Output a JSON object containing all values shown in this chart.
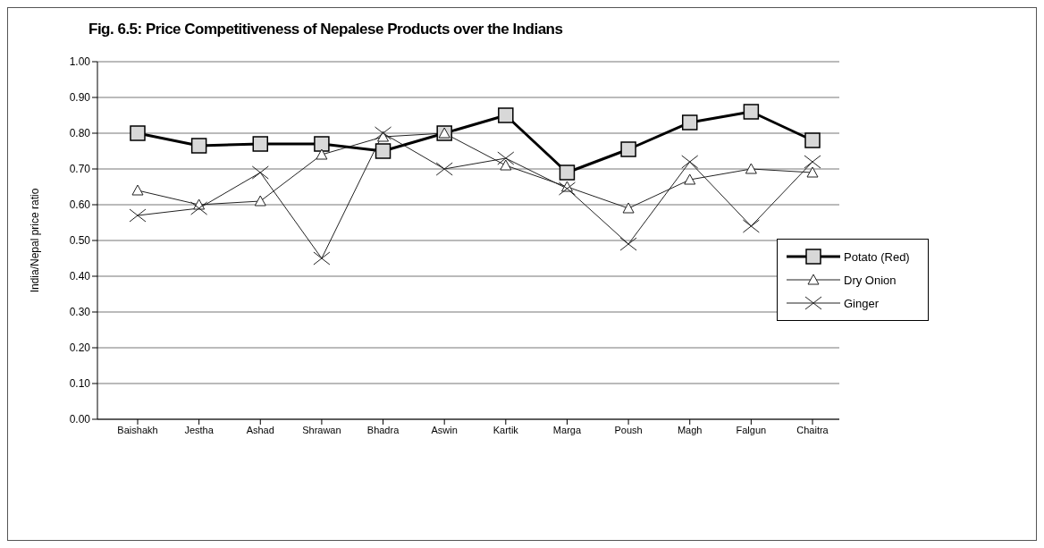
{
  "chart_data": {
    "type": "line",
    "title": "Fig. 6.5: Price Competitiveness of Nepalese Products over the Indians",
    "ylabel": "India/Nepal price ratio",
    "categories": [
      "Baishakh",
      "Jestha",
      "Ashad",
      "Shrawan",
      "Bhadra",
      "Aswin",
      "Kartik",
      "Marga",
      "Poush",
      "Magh",
      "Falgun",
      "Chaitra"
    ],
    "series": [
      {
        "name": "Potato (Red)",
        "color": "#000000",
        "marker": "square",
        "values": [
          0.8,
          0.765,
          0.77,
          0.77,
          0.75,
          0.8,
          0.85,
          0.69,
          0.755,
          0.83,
          0.86,
          0.78
        ]
      },
      {
        "name": "Dry Onion",
        "color": "#222222",
        "marker": "triangle",
        "values": [
          0.64,
          0.6,
          0.61,
          0.74,
          0.79,
          0.8,
          0.71,
          0.65,
          0.59,
          0.67,
          0.7,
          0.69
        ]
      },
      {
        "name": "Ginger",
        "color": "#222222",
        "marker": "cross",
        "values": [
          0.57,
          0.59,
          0.69,
          0.45,
          0.8,
          0.7,
          0.73,
          0.645,
          0.49,
          0.72,
          0.54,
          0.72
        ]
      }
    ],
    "ylim": [
      0,
      1
    ],
    "yticks": [
      {
        "value": 0,
        "label": "0.00"
      },
      {
        "value": 0.1,
        "label": "0.10"
      },
      {
        "value": 0.2,
        "label": "0.20"
      },
      {
        "value": 0.3,
        "label": "0.30"
      },
      {
        "value": 0.4,
        "label": "0.40"
      },
      {
        "value": 0.5,
        "label": "0.50"
      },
      {
        "value": 0.6,
        "label": "0.60"
      },
      {
        "value": 0.7,
        "label": "0.70"
      },
      {
        "value": 0.8,
        "label": "0.80"
      },
      {
        "value": 0.9,
        "label": "0.90"
      },
      {
        "value": 1,
        "label": "1.00"
      }
    ],
    "grid": "y",
    "legend": "bottom right"
  }
}
